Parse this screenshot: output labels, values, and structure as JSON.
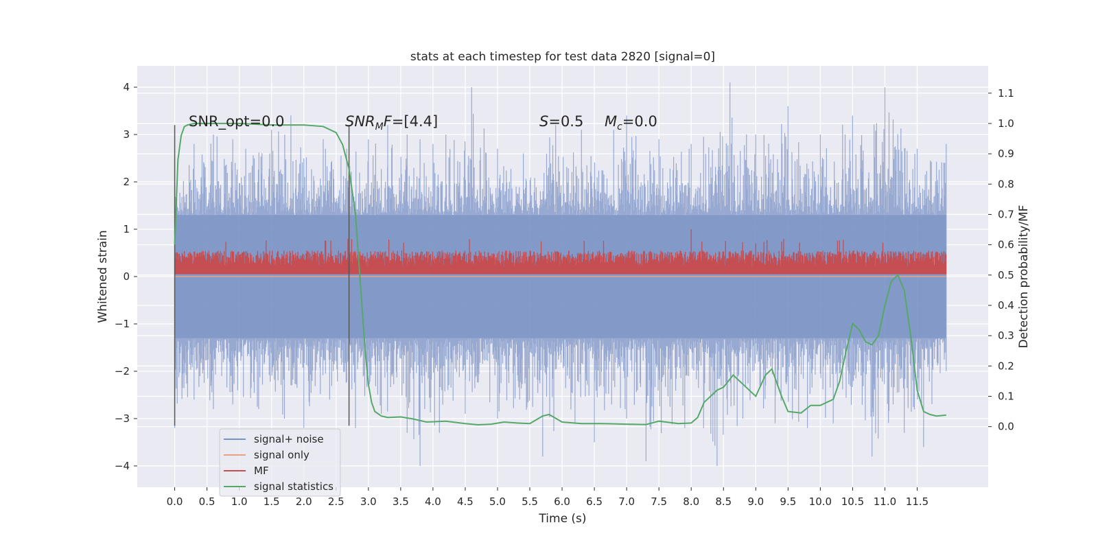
{
  "chart_data": {
    "type": "line",
    "title": "stats at each timestep for test data 2820 [signal=0]",
    "xlabel": "Time (s)",
    "ylabel": "Whitened strain",
    "ylabel_right": "Detection probability/MF",
    "xlim": [
      -0.58,
      12.6
    ],
    "ylim": [
      -4.45,
      4.45
    ],
    "ylim_right": [
      -0.2,
      1.19
    ],
    "x_ticks": [
      "0.0",
      "0.5",
      "1.0",
      "1.5",
      "2.0",
      "2.5",
      "3.0",
      "3.5",
      "4.0",
      "4.5",
      "5.0",
      "5.5",
      "6.0",
      "6.5",
      "7.0",
      "7.5",
      "8.0",
      "8.5",
      "9.0",
      "9.5",
      "10.0",
      "10.5",
      "11.0",
      "11.5"
    ],
    "y_ticks": [
      "4",
      "3",
      "2",
      "1",
      "0",
      "−1",
      "−2",
      "−3",
      "−4"
    ],
    "y_ticks_right": [
      "1.1",
      "1.0",
      "0.9",
      "0.8",
      "0.7",
      "0.6",
      "0.5",
      "0.4",
      "0.3",
      "0.2",
      "0.1",
      "0.0"
    ],
    "grid": true,
    "legend_position": "lower-left",
    "annotations": {
      "snr_opt": "SNR_opt=0.0",
      "snr_mf_sym": "SNR",
      "snr_mf_sub": "M",
      "snr_mf_sym2": "F",
      "snr_mf_val": "=[4.4]",
      "s_sym": "S",
      "s_val": "=0.5",
      "mc_sym": "M",
      "mc_sub": "c",
      "mc_val": "=0.0"
    },
    "vertical_markers": [
      0.0,
      2.7
    ],
    "series": [
      {
        "name": "signal+ noise",
        "color": "#7b93c4",
        "axis": "left",
        "description_range": [
          -4.0,
          4.1
        ],
        "peaks": [
          [
            0.0,
            2.0
          ],
          [
            0.3,
            2.8
          ],
          [
            0.6,
            3.0
          ],
          [
            0.9,
            2.9
          ],
          [
            1.1,
            2.7
          ],
          [
            1.5,
            3.1
          ],
          [
            1.8,
            3.4
          ],
          [
            2.3,
            2.9
          ],
          [
            3.0,
            2.9
          ],
          [
            3.3,
            3.2
          ],
          [
            3.6,
            3.0
          ],
          [
            3.8,
            2.9
          ],
          [
            4.0,
            2.8
          ],
          [
            4.2,
            3.0
          ],
          [
            4.6,
            4.0
          ],
          [
            5.0,
            2.7
          ],
          [
            5.4,
            2.6
          ],
          [
            5.9,
            3.2
          ],
          [
            6.3,
            3.1
          ],
          [
            6.8,
            3.1
          ],
          [
            7.0,
            3.4
          ],
          [
            7.5,
            2.9
          ],
          [
            8.0,
            2.8
          ],
          [
            8.6,
            4.1
          ],
          [
            9.0,
            3.0
          ],
          [
            9.5,
            3.6
          ],
          [
            10.0,
            3.0
          ],
          [
            10.5,
            3.4
          ],
          [
            11.0,
            4.0
          ],
          [
            11.5,
            2.7
          ],
          [
            11.95,
            2.8
          ]
        ],
        "troughs": [
          [
            0.0,
            -3.2
          ],
          [
            0.3,
            -2.6
          ],
          [
            0.6,
            -2.8
          ],
          [
            0.9,
            -2.7
          ],
          [
            1.3,
            -2.8
          ],
          [
            1.7,
            -3.0
          ],
          [
            2.0,
            -3.2
          ],
          [
            2.4,
            -2.6
          ],
          [
            2.8,
            -3.2
          ],
          [
            3.2,
            -2.9
          ],
          [
            3.6,
            -3.3
          ],
          [
            3.8,
            -4.0
          ],
          [
            4.1,
            -3.3
          ],
          [
            4.5,
            -2.9
          ],
          [
            5.0,
            -3.0
          ],
          [
            5.7,
            -3.8
          ],
          [
            6.2,
            -3.1
          ],
          [
            6.5,
            -3.5
          ],
          [
            7.0,
            -3.0
          ],
          [
            7.3,
            -3.9
          ],
          [
            7.9,
            -3.2
          ],
          [
            8.4,
            -4.0
          ],
          [
            8.8,
            -3.0
          ],
          [
            9.3,
            -3.1
          ],
          [
            9.8,
            -3.2
          ],
          [
            10.2,
            -3.1
          ],
          [
            10.8,
            -3.8
          ],
          [
            11.3,
            -3.3
          ],
          [
            11.6,
            -3.6
          ],
          [
            11.95,
            -2.0
          ]
        ]
      },
      {
        "name": "signal only",
        "color": "#e8a184",
        "axis": "left",
        "x": [
          0.0,
          11.95
        ],
        "y": [
          0.0,
          0.0
        ]
      },
      {
        "name": "MF",
        "color": "#c44e52",
        "axis": "left",
        "baseline": 0.05,
        "typical_peak": [
          0.5,
          0.7
        ],
        "max_peak": [
          8.0,
          1.0
        ]
      },
      {
        "name": "signal statistics",
        "color": "#55a868",
        "axis": "right",
        "x": [
          0.0,
          0.05,
          0.1,
          0.15,
          0.2,
          0.3,
          0.5,
          1.0,
          1.5,
          2.0,
          2.3,
          2.5,
          2.6,
          2.7,
          2.8,
          2.85,
          2.9,
          2.95,
          3.0,
          3.05,
          3.1,
          3.2,
          3.3,
          3.5,
          3.7,
          3.9,
          4.2,
          4.5,
          4.7,
          4.9,
          5.1,
          5.3,
          5.5,
          5.7,
          5.8,
          6.0,
          6.3,
          6.6,
          7.0,
          7.3,
          7.5,
          7.8,
          8.0,
          8.1,
          8.2,
          8.4,
          8.5,
          8.65,
          8.8,
          9.0,
          9.15,
          9.25,
          9.4,
          9.5,
          9.7,
          9.85,
          10.0,
          10.2,
          10.3,
          10.4,
          10.5,
          10.6,
          10.7,
          10.8,
          10.9,
          11.0,
          11.1,
          11.2,
          11.3,
          11.4,
          11.5,
          11.6,
          11.7,
          11.8,
          11.95
        ],
        "y": [
          0.6,
          0.88,
          0.96,
          0.99,
          0.995,
          1.0,
          1.0,
          1.0,
          0.995,
          0.995,
          0.99,
          0.97,
          0.93,
          0.85,
          0.7,
          0.55,
          0.4,
          0.25,
          0.14,
          0.08,
          0.05,
          0.035,
          0.03,
          0.032,
          0.025,
          0.015,
          0.018,
          0.01,
          0.006,
          0.008,
          0.015,
          0.012,
          0.01,
          0.035,
          0.04,
          0.015,
          0.01,
          0.01,
          0.008,
          0.007,
          0.018,
          0.01,
          0.012,
          0.03,
          0.08,
          0.12,
          0.13,
          0.17,
          0.14,
          0.1,
          0.17,
          0.19,
          0.1,
          0.05,
          0.045,
          0.07,
          0.07,
          0.09,
          0.15,
          0.25,
          0.34,
          0.32,
          0.28,
          0.27,
          0.3,
          0.4,
          0.48,
          0.5,
          0.45,
          0.3,
          0.12,
          0.05,
          0.04,
          0.035,
          0.038
        ]
      }
    ]
  }
}
